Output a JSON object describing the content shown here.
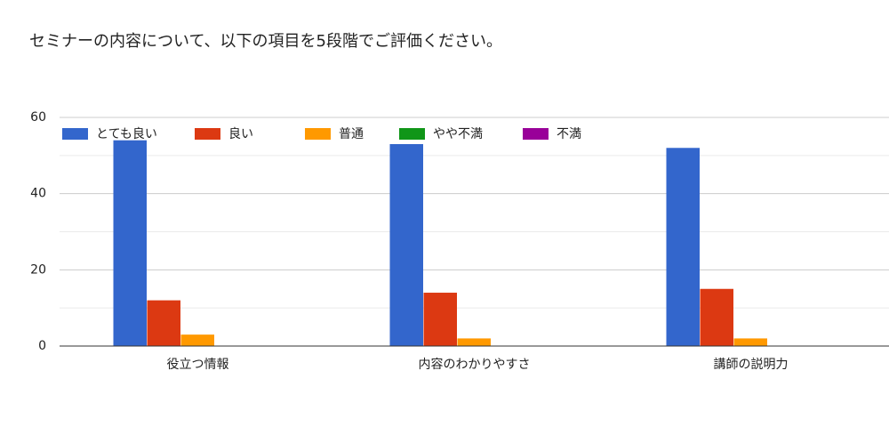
{
  "chart_data": {
    "type": "bar",
    "title": "セミナーの内容について、以下の項目を5段階でご評価ください。",
    "categories": [
      "役立つ情報",
      "内容のわかりやすさ",
      "講師の説明力"
    ],
    "series": [
      {
        "name": "とても良い",
        "color": "#3366cc",
        "values": [
          54,
          53,
          52
        ]
      },
      {
        "name": "良い",
        "color": "#dc3912",
        "values": [
          12,
          14,
          15
        ]
      },
      {
        "name": "普通",
        "color": "#ff9900",
        "values": [
          3,
          2,
          2
        ]
      },
      {
        "name": "やや不満",
        "color": "#109618",
        "values": [
          0,
          0,
          0
        ]
      },
      {
        "name": "不満",
        "color": "#990099",
        "values": [
          0,
          0,
          0
        ]
      }
    ],
    "ylim": [
      0,
      60
    ],
    "yticks": [
      0,
      20,
      40,
      60
    ],
    "minor_yticks": [
      10,
      30,
      50
    ],
    "grid": true,
    "legend": "top-left"
  }
}
